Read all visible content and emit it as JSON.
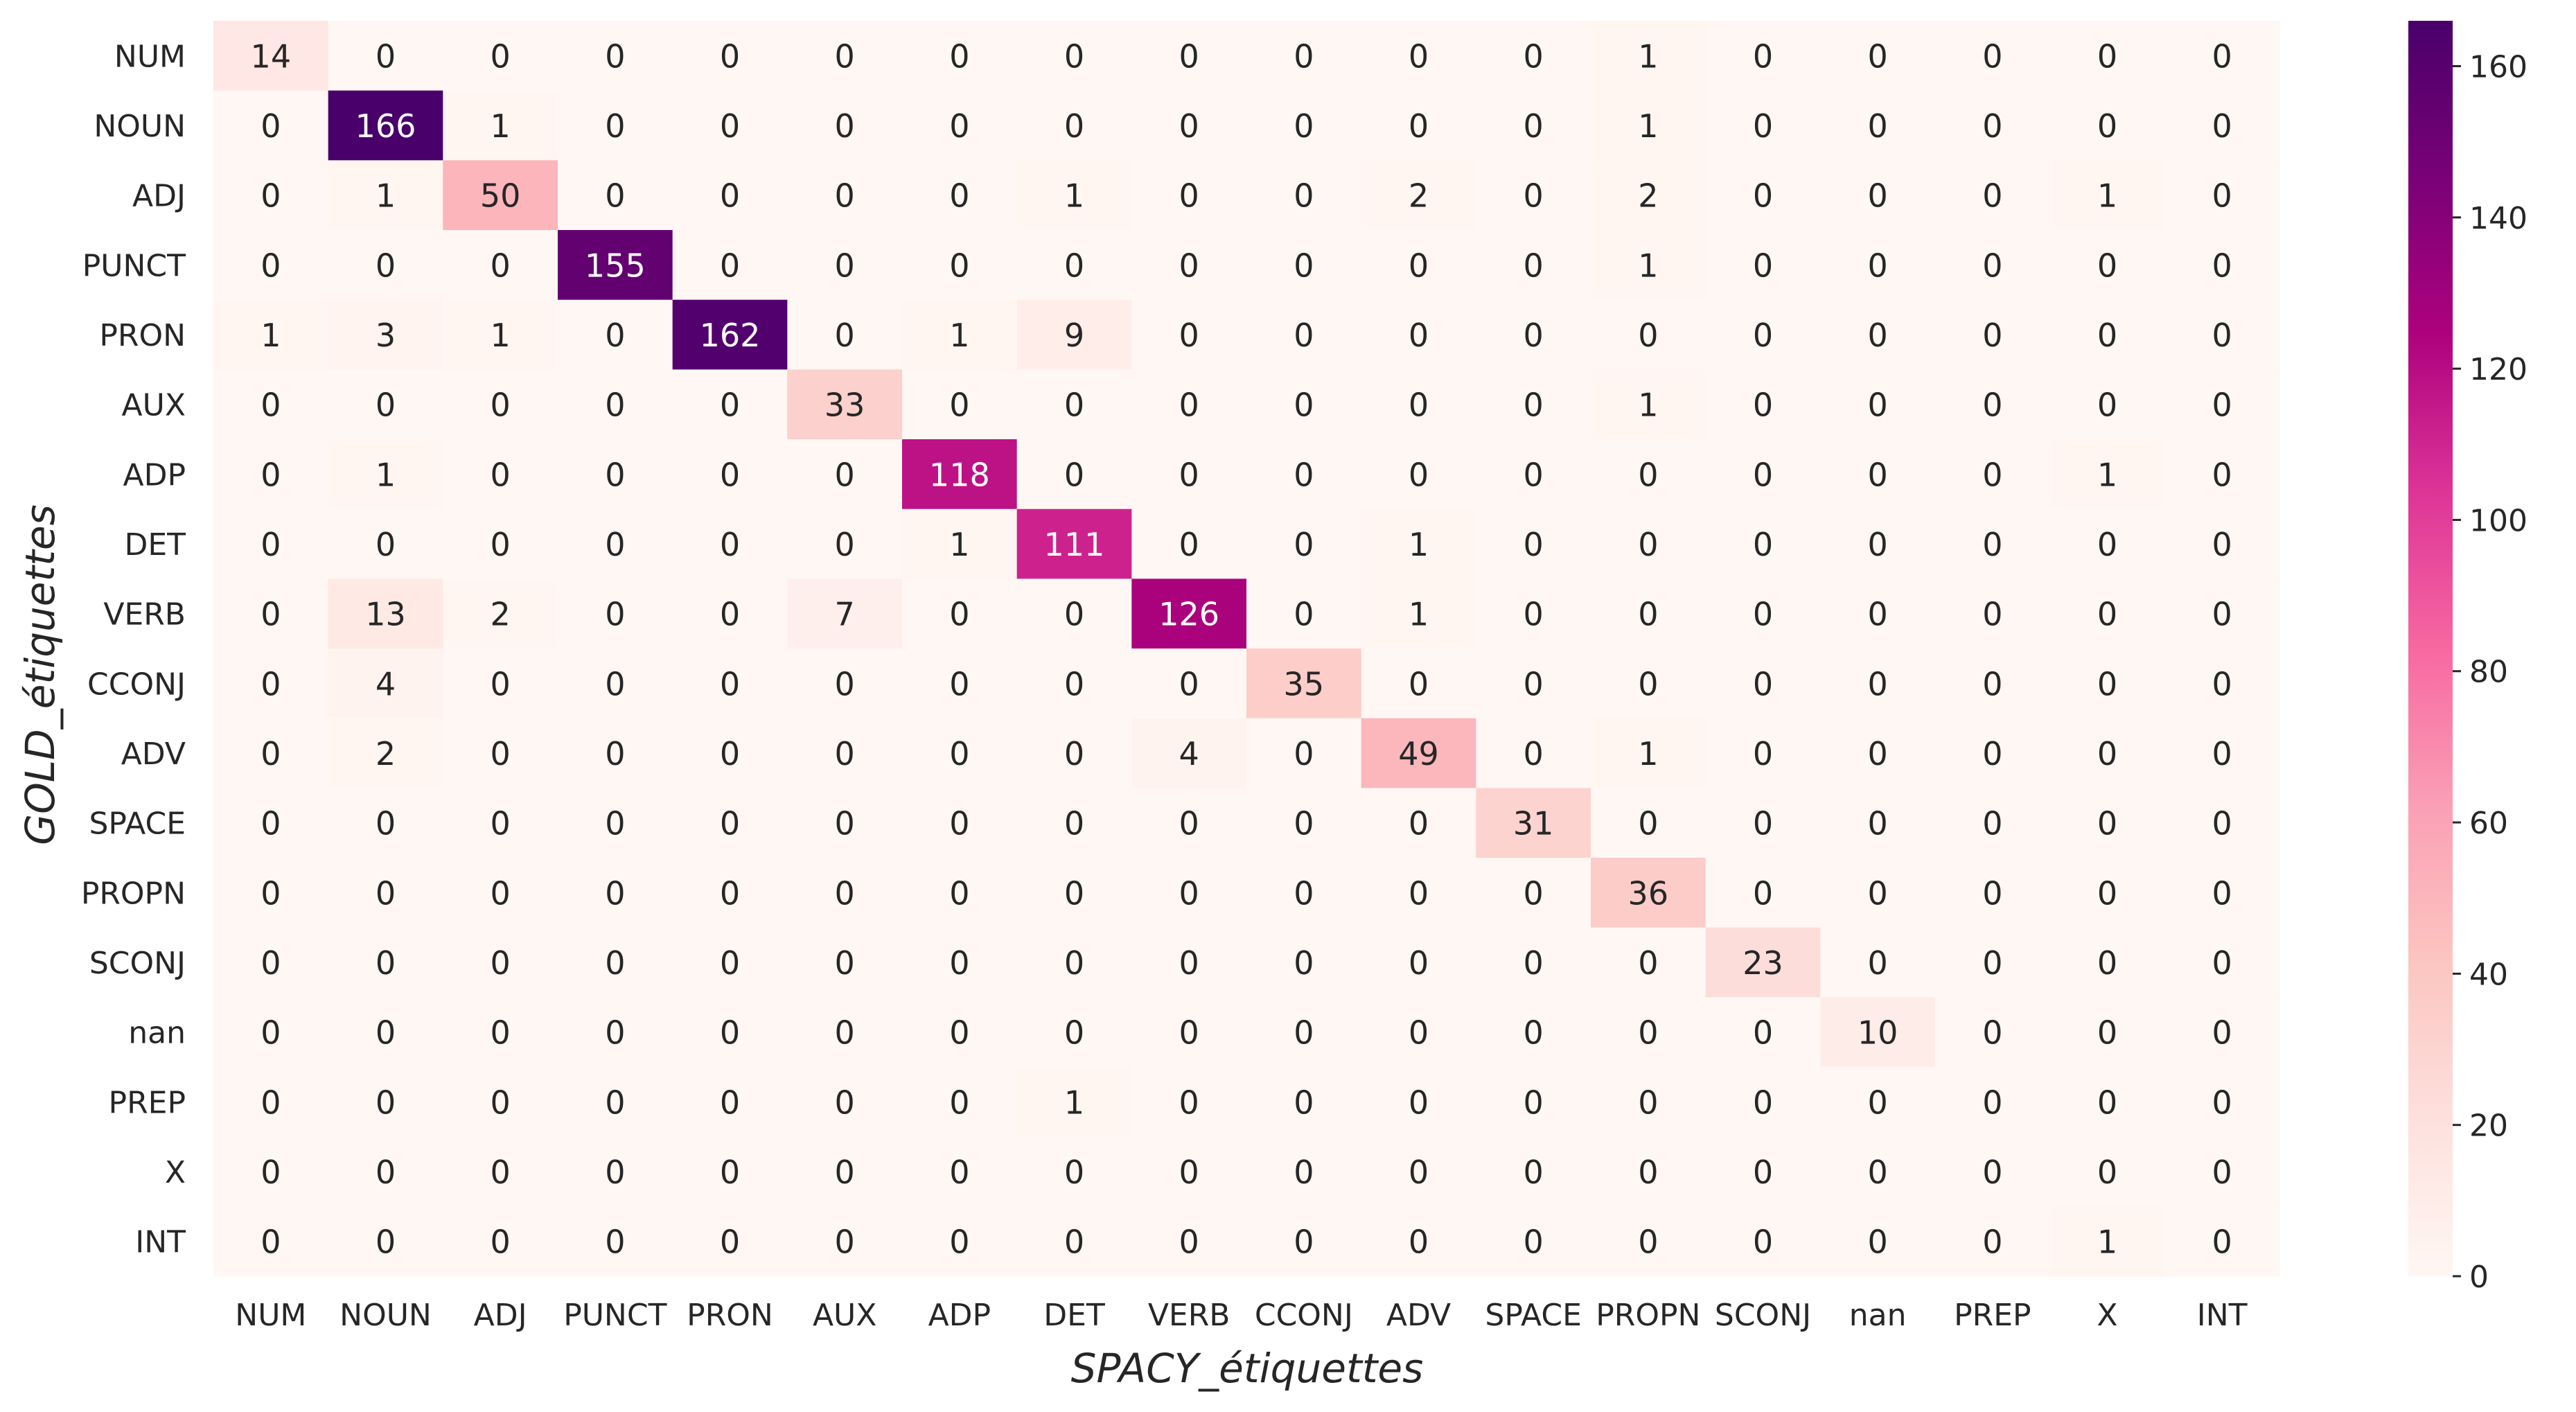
{
  "chart_data": {
    "type": "heatmap",
    "title": "",
    "xlabel": "SPACY_étiquettes",
    "ylabel": "GOLD_étiquettes",
    "x_categories": [
      "NUM",
      "NOUN",
      "ADJ",
      "PUNCT",
      "PRON",
      "AUX",
      "ADP",
      "DET",
      "VERB",
      "CCONJ",
      "ADV",
      "SPACE",
      "PROPN",
      "SCONJ",
      "nan",
      "PREP",
      "X",
      "INT"
    ],
    "y_categories": [
      "NUM",
      "NOUN",
      "ADJ",
      "PUNCT",
      "PRON",
      "AUX",
      "ADP",
      "DET",
      "VERB",
      "CCONJ",
      "ADV",
      "SPACE",
      "PROPN",
      "SCONJ",
      "nan",
      "PREP",
      "X",
      "INT"
    ],
    "values": [
      [
        14,
        0,
        0,
        0,
        0,
        0,
        0,
        0,
        0,
        0,
        0,
        0,
        1,
        0,
        0,
        0,
        0,
        0
      ],
      [
        0,
        166,
        1,
        0,
        0,
        0,
        0,
        0,
        0,
        0,
        0,
        0,
        1,
        0,
        0,
        0,
        0,
        0
      ],
      [
        0,
        1,
        50,
        0,
        0,
        0,
        0,
        1,
        0,
        0,
        2,
        0,
        2,
        0,
        0,
        0,
        1,
        0
      ],
      [
        0,
        0,
        0,
        155,
        0,
        0,
        0,
        0,
        0,
        0,
        0,
        0,
        1,
        0,
        0,
        0,
        0,
        0
      ],
      [
        1,
        3,
        1,
        0,
        162,
        0,
        1,
        9,
        0,
        0,
        0,
        0,
        0,
        0,
        0,
        0,
        0,
        0
      ],
      [
        0,
        0,
        0,
        0,
        0,
        33,
        0,
        0,
        0,
        0,
        0,
        0,
        1,
        0,
        0,
        0,
        0,
        0
      ],
      [
        0,
        1,
        0,
        0,
        0,
        0,
        118,
        0,
        0,
        0,
        0,
        0,
        0,
        0,
        0,
        0,
        1,
        0
      ],
      [
        0,
        0,
        0,
        0,
        0,
        0,
        1,
        111,
        0,
        0,
        1,
        0,
        0,
        0,
        0,
        0,
        0,
        0
      ],
      [
        0,
        13,
        2,
        0,
        0,
        7,
        0,
        0,
        126,
        0,
        1,
        0,
        0,
        0,
        0,
        0,
        0,
        0
      ],
      [
        0,
        4,
        0,
        0,
        0,
        0,
        0,
        0,
        0,
        35,
        0,
        0,
        0,
        0,
        0,
        0,
        0,
        0
      ],
      [
        0,
        2,
        0,
        0,
        0,
        0,
        0,
        0,
        4,
        0,
        49,
        0,
        1,
        0,
        0,
        0,
        0,
        0
      ],
      [
        0,
        0,
        0,
        0,
        0,
        0,
        0,
        0,
        0,
        0,
        0,
        31,
        0,
        0,
        0,
        0,
        0,
        0
      ],
      [
        0,
        0,
        0,
        0,
        0,
        0,
        0,
        0,
        0,
        0,
        0,
        0,
        36,
        0,
        0,
        0,
        0,
        0
      ],
      [
        0,
        0,
        0,
        0,
        0,
        0,
        0,
        0,
        0,
        0,
        0,
        0,
        0,
        23,
        0,
        0,
        0,
        0
      ],
      [
        0,
        0,
        0,
        0,
        0,
        0,
        0,
        0,
        0,
        0,
        0,
        0,
        0,
        0,
        10,
        0,
        0,
        0
      ],
      [
        0,
        0,
        0,
        0,
        0,
        0,
        0,
        1,
        0,
        0,
        0,
        0,
        0,
        0,
        0,
        0,
        0,
        0
      ],
      [
        0,
        0,
        0,
        0,
        0,
        0,
        0,
        0,
        0,
        0,
        0,
        0,
        0,
        0,
        0,
        0,
        0,
        0
      ],
      [
        0,
        0,
        0,
        0,
        0,
        0,
        0,
        0,
        0,
        0,
        0,
        0,
        0,
        0,
        0,
        0,
        1,
        0
      ]
    ],
    "colorbar": {
      "range": [
        0,
        166
      ],
      "ticks": [
        0,
        20,
        40,
        60,
        80,
        100,
        120,
        140,
        160
      ],
      "colormap": [
        "#fff7f3",
        "#fde0dd",
        "#fcc5c0",
        "#fa9fb5",
        "#f768a1",
        "#dd3497",
        "#ae017e",
        "#7a0177",
        "#49006a"
      ]
    },
    "grid": false
  }
}
